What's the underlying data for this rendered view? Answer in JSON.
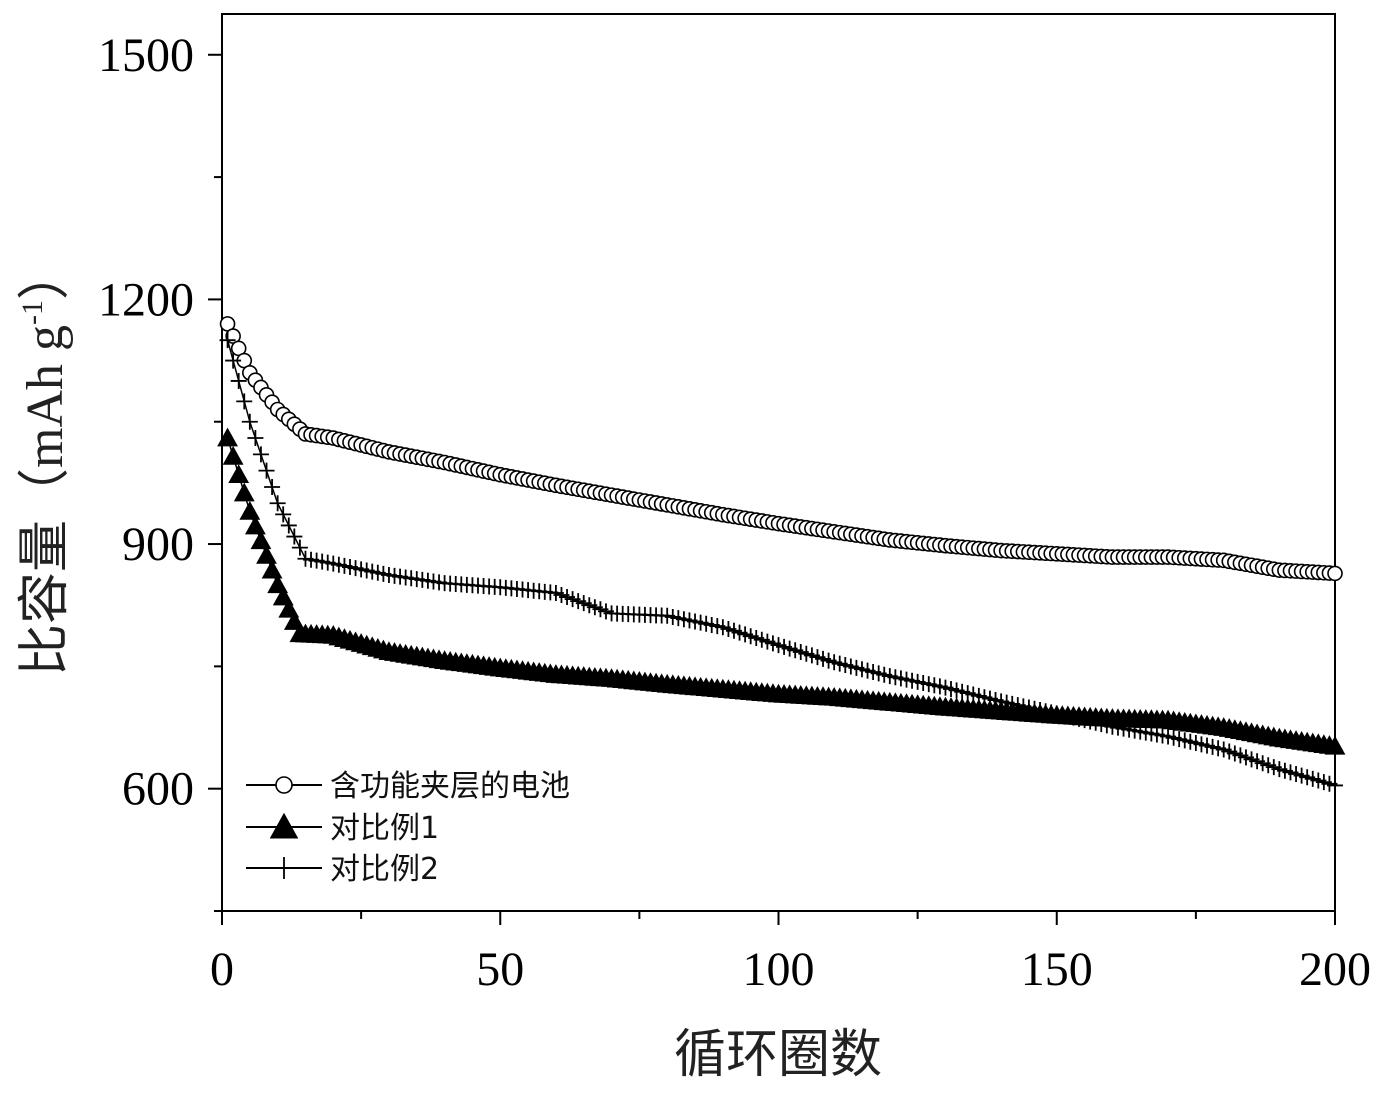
{
  "chart_data": {
    "type": "scatter",
    "xlabel": "循环圈数",
    "ylabel_main": "比容量（",
    "ylabel_unit_pre": "mAh g",
    "ylabel_sup": "-1",
    "ylabel_close": "）",
    "xlim": [
      0,
      200
    ],
    "ylim": [
      450,
      1550
    ],
    "x_ticks": [
      0,
      50,
      100,
      150,
      200
    ],
    "x_tick_labels": [
      "0",
      "50",
      "100",
      "150",
      "200"
    ],
    "y_ticks": [
      600,
      900,
      1200,
      1500
    ],
    "y_tick_labels": [
      "600",
      "900",
      "1200",
      "1500"
    ],
    "legend": {
      "position": "bottom-left",
      "entries": [
        "含功能夹层的电池",
        "对比例1",
        "对比例2"
      ]
    },
    "series": [
      {
        "name": "含功能夹层的电池",
        "marker": "circle",
        "color": "#000000",
        "x": [
          1,
          5,
          10,
          15,
          20,
          30,
          40,
          50,
          60,
          70,
          80,
          90,
          100,
          110,
          120,
          130,
          140,
          150,
          160,
          170,
          180,
          190,
          200
        ],
        "y": [
          1170,
          1110,
          1065,
          1035,
          1030,
          1013,
          1000,
          985,
          972,
          960,
          948,
          936,
          925,
          915,
          905,
          898,
          892,
          888,
          884,
          884,
          880,
          868,
          864
        ]
      },
      {
        "name": "对比例1",
        "marker": "triangle",
        "color": "#000000",
        "x": [
          1,
          5,
          10,
          14,
          20,
          30,
          40,
          50,
          60,
          70,
          80,
          90,
          100,
          110,
          120,
          130,
          140,
          150,
          160,
          170,
          180,
          190,
          200
        ],
        "y": [
          1030,
          940,
          850,
          790,
          788,
          768,
          757,
          748,
          740,
          735,
          728,
          722,
          716,
          712,
          706,
          700,
          695,
          690,
          686,
          684,
          675,
          662,
          652
        ]
      },
      {
        "name": "对比例2",
        "marker": "plus",
        "color": "#000000",
        "x": [
          1,
          5,
          10,
          15,
          20,
          30,
          40,
          50,
          60,
          70,
          80,
          90,
          100,
          110,
          120,
          130,
          140,
          150,
          160,
          170,
          180,
          190,
          200
        ],
        "y": [
          1150,
          1050,
          950,
          882,
          876,
          862,
          852,
          847,
          840,
          815,
          812,
          798,
          776,
          755,
          738,
          724,
          707,
          692,
          676,
          664,
          648,
          624,
          604
        ]
      }
    ]
  }
}
